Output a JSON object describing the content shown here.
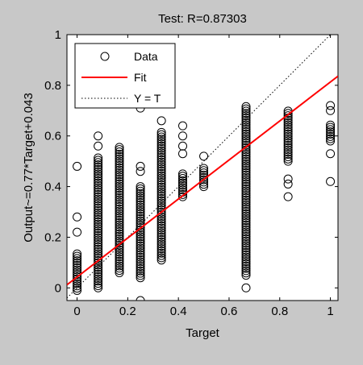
{
  "window": {
    "background": "#c8c8c8"
  },
  "chart_data": {
    "type": "scatter",
    "title": "Test: R=0.87303",
    "xlabel": "Target",
    "ylabel": "Output~=0.77*Target+0.043",
    "xlim": [
      -0.04,
      1.03
    ],
    "ylim": [
      -0.05,
      1.0
    ],
    "xticks": [
      0,
      0.2,
      0.4,
      0.6,
      0.8,
      1
    ],
    "xtick_labels": [
      "0",
      "0.2",
      "0.4",
      "0.6",
      "0.8",
      "1"
    ],
    "yticks": [
      0,
      0.2,
      0.4,
      0.6,
      0.8,
      1
    ],
    "ytick_labels": [
      "0",
      "0.2",
      "0.4",
      "0.6",
      "0.8",
      "1"
    ],
    "grid": false,
    "legend": {
      "placement": "top-left",
      "entries": [
        {
          "label": "Data",
          "marker": "circle",
          "color": "#000000"
        },
        {
          "label": "Fit",
          "line": "solid",
          "color": "#ff0000"
        },
        {
          "label": "Y = T",
          "line": "dotted",
          "color": "#000000"
        }
      ]
    },
    "fit_line": {
      "slope": 0.77,
      "intercept": 0.043,
      "color": "#ff0000"
    },
    "identity_line": {
      "slope": 1,
      "intercept": 0,
      "color": "#000000"
    },
    "series": [
      {
        "name": "Data",
        "clusters": [
          {
            "x": 0.0,
            "ymin": -0.01,
            "ymax": 0.14,
            "outliers": [
              0.22,
              0.28,
              0.48
            ]
          },
          {
            "x": 0.083,
            "ymin": 0.0,
            "ymax": 0.52,
            "outliers": [
              0.56,
              0.6
            ]
          },
          {
            "x": 0.167,
            "ymin": 0.06,
            "ymax": 0.56,
            "outliers": []
          },
          {
            "x": 0.25,
            "ymin": 0.04,
            "ymax": 0.4,
            "outliers": [
              -0.05,
              0.46,
              0.48,
              0.71
            ]
          },
          {
            "x": 0.333,
            "ymin": 0.11,
            "ymax": 0.62,
            "outliers": [
              0.66
            ]
          },
          {
            "x": 0.417,
            "ymin": 0.36,
            "ymax": 0.45,
            "outliers": [
              0.53,
              0.56,
              0.6,
              0.64
            ]
          },
          {
            "x": 0.5,
            "ymin": 0.4,
            "ymax": 0.48,
            "outliers": [
              0.52
            ]
          },
          {
            "x": 0.667,
            "ymin": 0.05,
            "ymax": 0.72,
            "outliers": [
              0.0
            ]
          },
          {
            "x": 0.833,
            "ymin": 0.5,
            "ymax": 0.7,
            "outliers": [
              0.36,
              0.41,
              0.43
            ]
          },
          {
            "x": 1.0,
            "ymin": 0.58,
            "ymax": 0.65,
            "outliers": [
              0.42,
              0.53,
              0.7,
              0.72
            ]
          }
        ]
      }
    ]
  }
}
